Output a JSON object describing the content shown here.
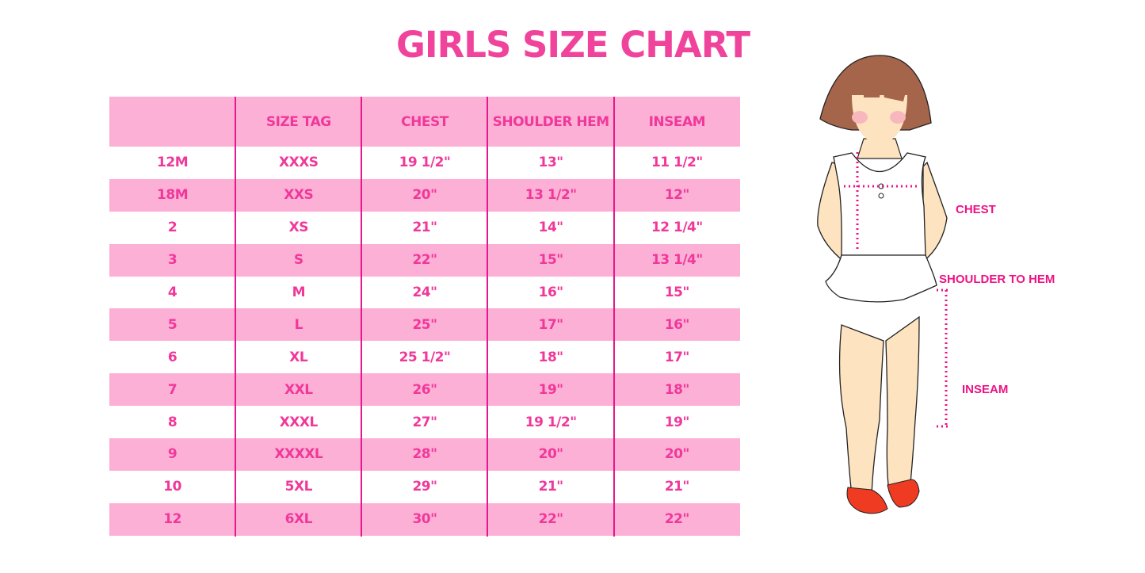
{
  "title": "GIRLS SIZE CHART",
  "table": {
    "headers": [
      "",
      "SIZE TAG",
      "CHEST",
      "SHOULDER HEM",
      "INSEAM"
    ],
    "rows": [
      [
        "12M",
        "XXXS",
        "19 1/2\"",
        "13\"",
        "11 1/2\""
      ],
      [
        "18M",
        "XXS",
        "20\"",
        "13 1/2\"",
        "12\""
      ],
      [
        "2",
        "XS",
        "21\"",
        "14\"",
        "12 1/4\""
      ],
      [
        "3",
        "S",
        "22\"",
        "15\"",
        "13 1/4\""
      ],
      [
        "4",
        "M",
        "24\"",
        "16\"",
        "15\""
      ],
      [
        "5",
        "L",
        "25\"",
        "17\"",
        "16\""
      ],
      [
        "6",
        "XL",
        "25 1/2\"",
        "18\"",
        "17\""
      ],
      [
        "7",
        "XXL",
        "26\"",
        "19\"",
        "18\""
      ],
      [
        "8",
        "XXXL",
        "27\"",
        "19 1/2\"",
        "19\""
      ],
      [
        "9",
        "XXXXL",
        "28\"",
        "20\"",
        "20\""
      ],
      [
        "10",
        "5XL",
        "29\"",
        "21\"",
        "21\""
      ],
      [
        "12",
        "6XL",
        "30\"",
        "22\"",
        "22\""
      ]
    ]
  },
  "illustration": {
    "chest_label": "CHEST",
    "shoulder_label": "SHOULDER TO HEM",
    "inseam_label": "INSEAM"
  },
  "colors": {
    "accent": "#f0389a",
    "row_pink": "#fdb0d6",
    "divider": "#e8178c",
    "measure": "#ee1285"
  }
}
